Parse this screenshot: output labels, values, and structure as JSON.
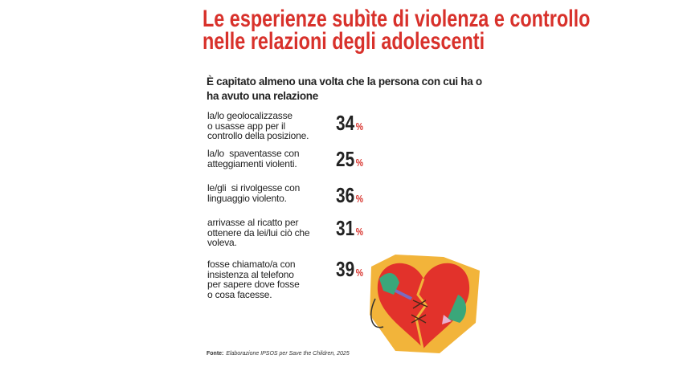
{
  "title_lines": [
    "Le esperienze subìte di violenza e controllo",
    "nelle relazioni degli adolescenti"
  ],
  "subtitle": "È capitato almeno una volta che la persona con cui ha o ha avuto una relazione",
  "colors": {
    "accent": "#d8312b",
    "heart": "#e2322b",
    "heart_bg": "#f2b43a"
  },
  "chart_data": {
    "type": "table",
    "unit": "%",
    "items": [
      {
        "label": "la/lo geolocalizzasse\no usasse app per il\ncontrollo della posizione.",
        "value": 34
      },
      {
        "label": "la/lo  spaventasse con\natteggiamenti violenti.",
        "value": 25
      },
      {
        "label": "le/gli  si rivolgesse con\nlinguaggio violento.",
        "value": 36
      },
      {
        "label": "arrivasse al ricatto per\nottenere da lei/lui ciò che\nvoleva.",
        "value": 31
      },
      {
        "label": "fosse chiamato/a con\ninsistenza al telefono\nper sapere dove fosse\no cosa facesse.",
        "value": 39
      }
    ]
  },
  "source": {
    "label": "Fonte:",
    "text": "Elaborazione IPSOS per Save the Children, 2025"
  },
  "illustration": "broken-heart-stitched-icon"
}
